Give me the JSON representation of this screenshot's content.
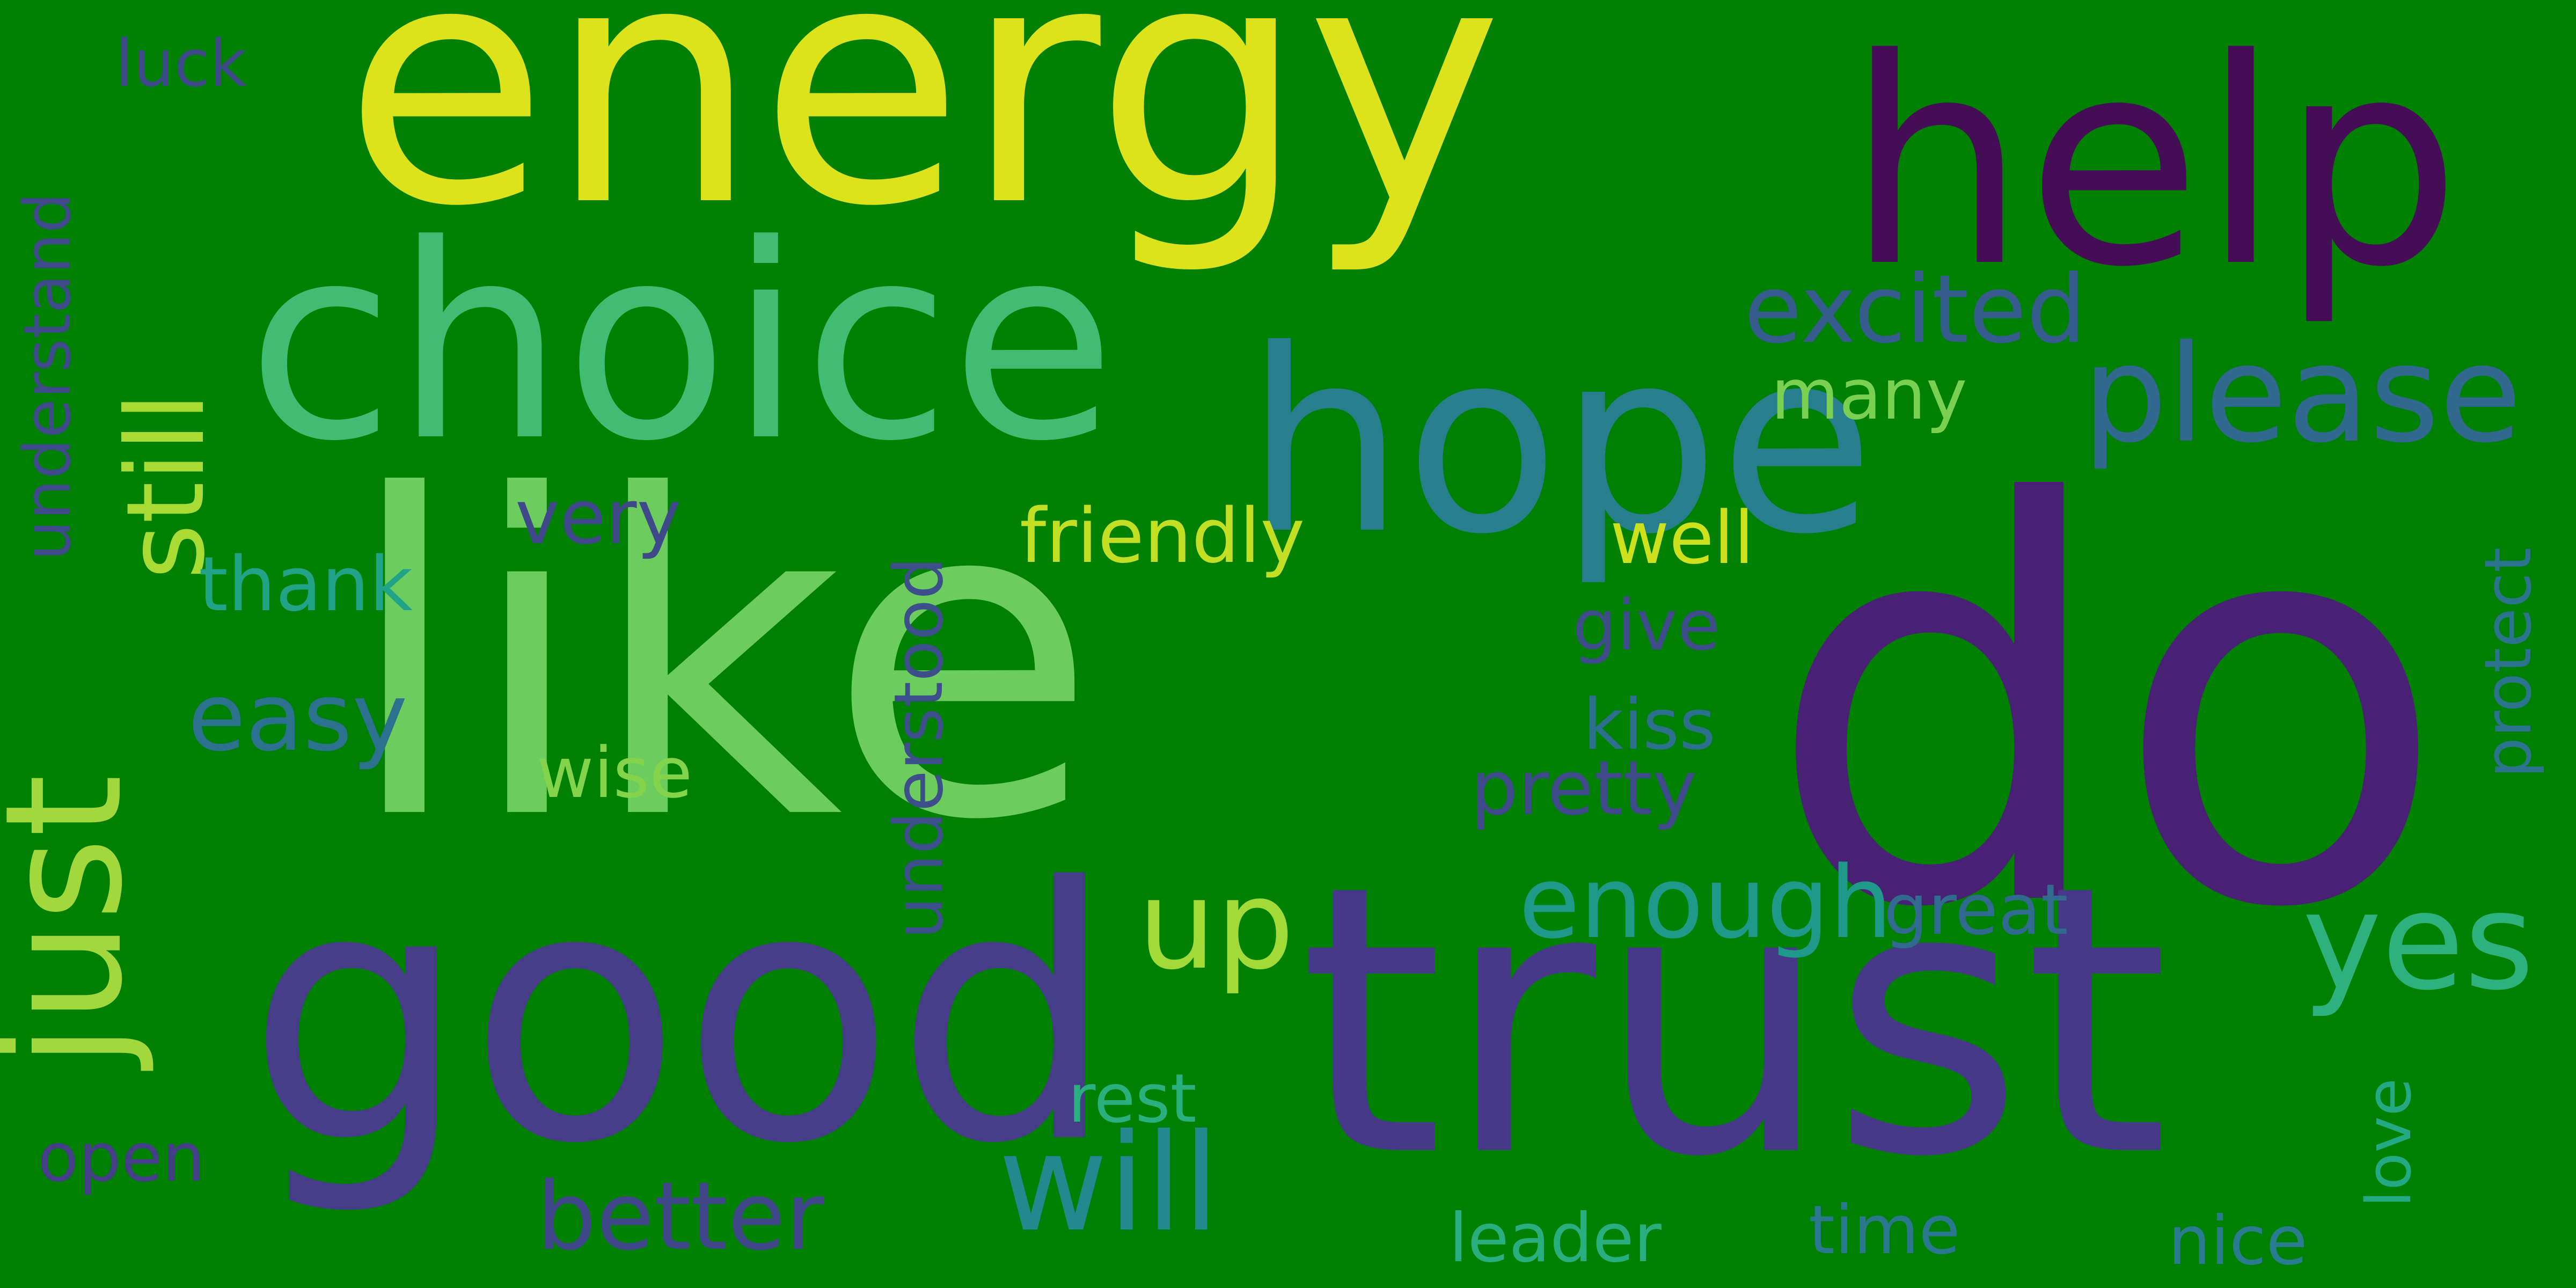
{
  "background_color": "#008000",
  "words": [
    {
      "text": "energy",
      "color": "#dce31b"
    },
    {
      "text": "like",
      "color": "#6ccc5e"
    },
    {
      "text": "do",
      "color": "#482174"
    },
    {
      "text": "help",
      "color": "#450d55"
    },
    {
      "text": "choice",
      "color": "#40bd73"
    },
    {
      "text": "hope",
      "color": "#277f8e"
    },
    {
      "text": "good",
      "color": "#453d87"
    },
    {
      "text": "trust",
      "color": "#46398a"
    },
    {
      "text": "just",
      "color": "#a2d83c"
    },
    {
      "text": "still",
      "color": "#a8db34"
    },
    {
      "text": "please",
      "color": "#30688e"
    },
    {
      "text": "excited",
      "color": "#365c8d"
    },
    {
      "text": "yes",
      "color": "#2db27d"
    },
    {
      "text": "up",
      "color": "#a2da37"
    },
    {
      "text": "enough",
      "color": "#1f9a8a"
    },
    {
      "text": "will",
      "color": "#23898e"
    },
    {
      "text": "understood",
      "color": "#3c4f8a"
    },
    {
      "text": "understand",
      "color": "#3e4a89"
    },
    {
      "text": "easy",
      "color": "#2c718e"
    },
    {
      "text": "friendly",
      "color": "#c2df23"
    },
    {
      "text": "better",
      "color": "#3f4788"
    },
    {
      "text": "many",
      "color": "#7ad151"
    },
    {
      "text": "well",
      "color": "#cde11d"
    },
    {
      "text": "thank",
      "color": "#20a386"
    },
    {
      "text": "very",
      "color": "#3f4889"
    },
    {
      "text": "wise",
      "color": "#84d44b"
    },
    {
      "text": "give",
      "color": "#3e4c8a"
    },
    {
      "text": "kiss",
      "color": "#2d708e"
    },
    {
      "text": "pretty",
      "color": "#3e4a89"
    },
    {
      "text": "great",
      "color": "#306a8e"
    },
    {
      "text": "protect",
      "color": "#2c738e"
    },
    {
      "text": "rest",
      "color": "#2ab07f"
    },
    {
      "text": "leader",
      "color": "#29af7f"
    },
    {
      "text": "time",
      "color": "#2a788e"
    },
    {
      "text": "nice",
      "color": "#297b8e"
    },
    {
      "text": "love",
      "color": "#23a983"
    },
    {
      "text": "open",
      "color": "#433e85"
    },
    {
      "text": "luck",
      "color": "#3e4989"
    }
  ]
}
